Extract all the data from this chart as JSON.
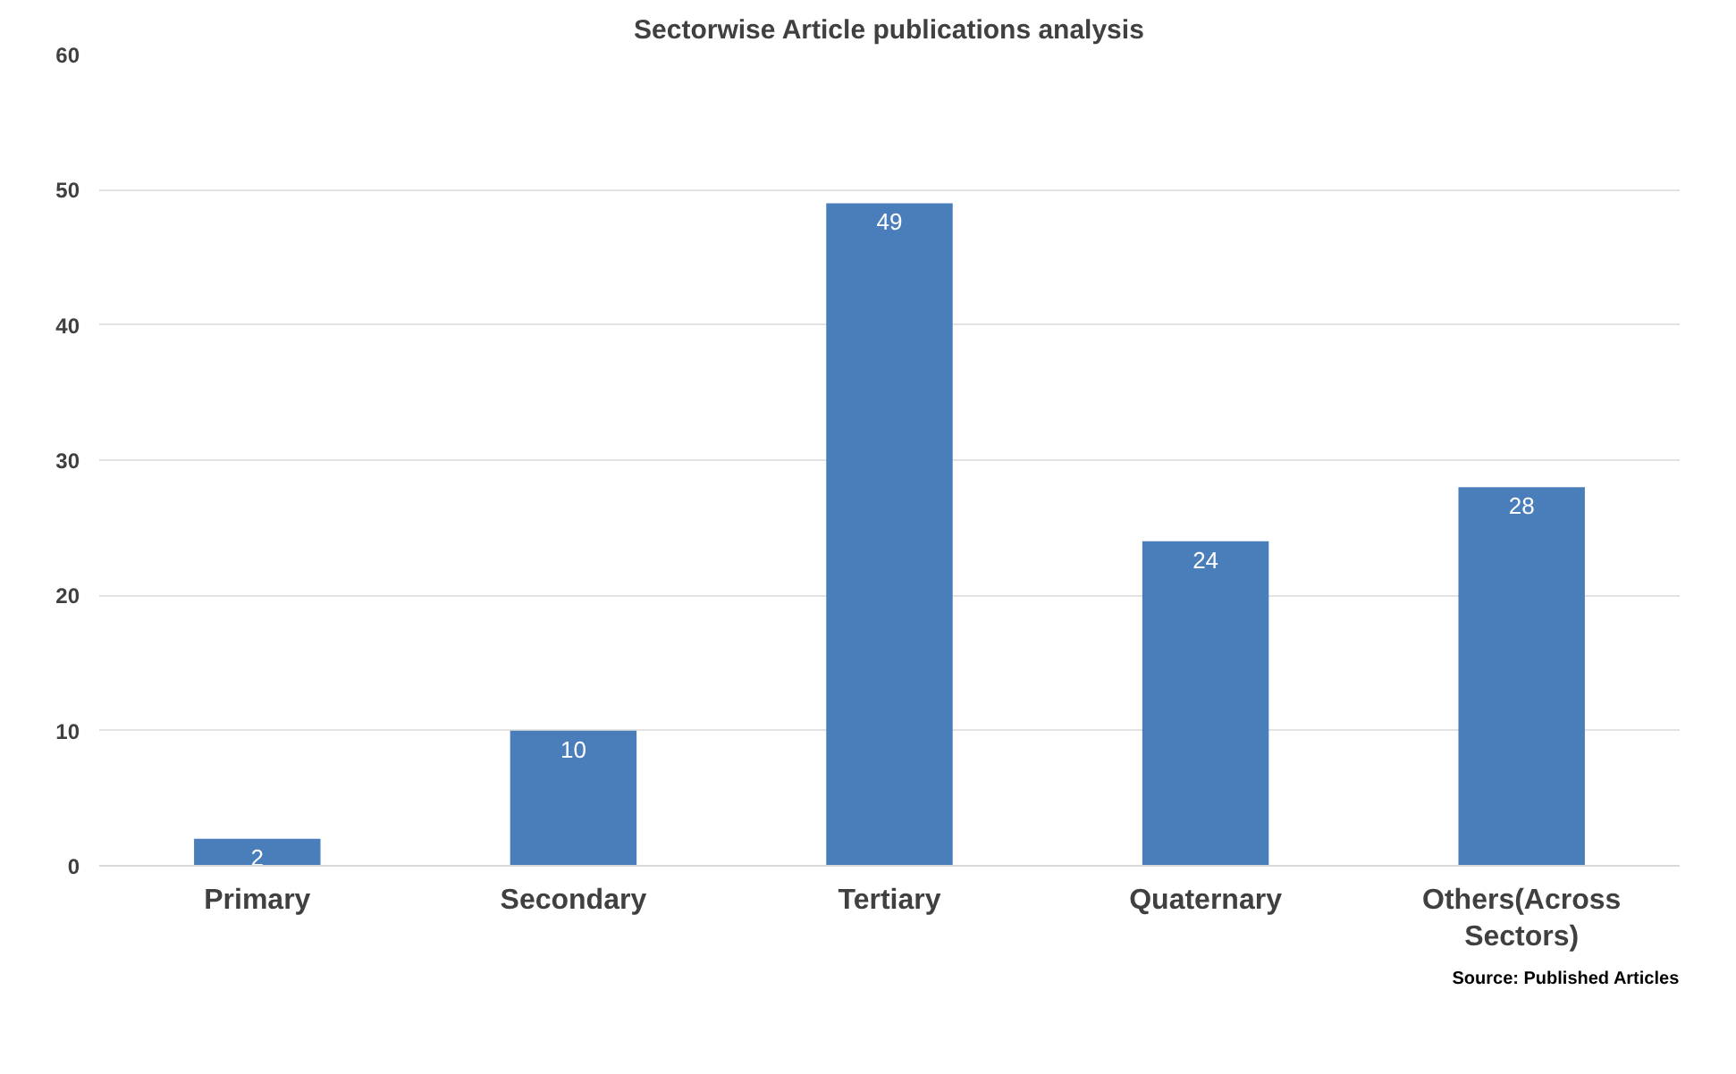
{
  "chart_data": {
    "type": "bar",
    "title": "Sectorwise Article publications analysis",
    "categories": [
      "Primary",
      "Secondary",
      "Tertiary",
      "Quaternary",
      "Others(Across Sectors)"
    ],
    "values": [
      2,
      10,
      49,
      24,
      28
    ],
    "color": "#4a7ebb",
    "ylim": [
      0,
      60
    ],
    "yticks": [
      0,
      10,
      20,
      30,
      40,
      50,
      60
    ],
    "grid": "y",
    "data_labels": true,
    "annotations": [
      "Source: Published Articles"
    ]
  }
}
